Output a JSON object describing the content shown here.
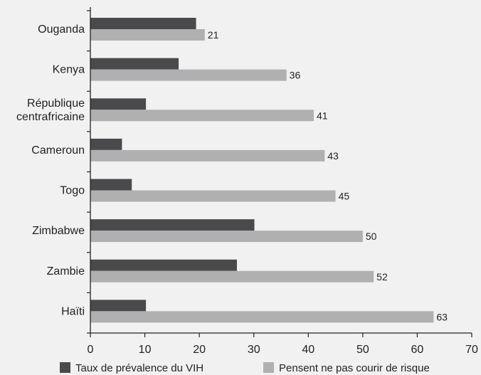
{
  "chart_data": {
    "type": "bar",
    "orientation": "horizontal",
    "categories": [
      [
        "Ouganda"
      ],
      [
        "Kenya"
      ],
      [
        "République",
        "centrafricaine"
      ],
      [
        "Cameroun"
      ],
      [
        "Togo"
      ],
      [
        "Zimbabwe"
      ],
      [
        "Zambie"
      ],
      [
        "Haïti"
      ]
    ],
    "series": [
      {
        "name": "Taux de prévalence du VIH",
        "color": "#4a4a4c",
        "values": [
          19.4,
          16.2,
          10.2,
          5.8,
          7.6,
          30.1,
          26.9,
          10.2
        ]
      },
      {
        "name": "Pensent ne pas courir de risque",
        "color": "#b0b0b2",
        "values": [
          21,
          36,
          41,
          43,
          45,
          50,
          52,
          63
        ],
        "data_labels": [
          "21",
          "36",
          "41",
          "43",
          "45",
          "50",
          "52",
          "63"
        ]
      }
    ],
    "xlim": [
      0,
      70
    ],
    "xticks": [
      "0",
      "10",
      "20",
      "30",
      "40",
      "50",
      "60",
      "70"
    ],
    "grid": false,
    "legend_position": "bottom"
  }
}
